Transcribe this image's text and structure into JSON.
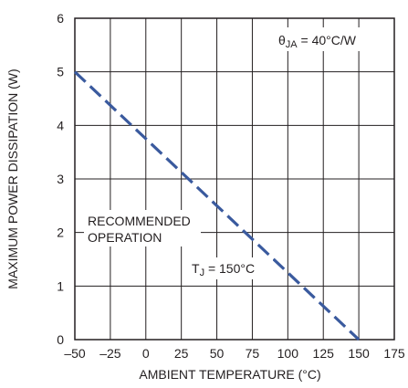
{
  "chart_data": {
    "type": "line",
    "title": "",
    "xlabel": "AMBIENT TEMPERATURE (°C)",
    "ylabel": "MAXIMUM POWER DISSIPATION (W)",
    "xlim": [
      -50,
      175
    ],
    "ylim": [
      0,
      6
    ],
    "x_ticks": [
      -50,
      -25,
      0,
      25,
      50,
      75,
      100,
      125,
      150,
      175
    ],
    "x_tick_labels": [
      "–50",
      "–25",
      "0",
      "25",
      "50",
      "75",
      "100",
      "125",
      "150",
      "175"
    ],
    "y_ticks": [
      0,
      1,
      2,
      3,
      4,
      5,
      6
    ],
    "y_tick_labels": [
      "0",
      "1",
      "2",
      "3",
      "4",
      "5",
      "6"
    ],
    "grid": true,
    "series": [
      {
        "line_style": "dashed",
        "color": "#3a5a9e",
        "x": [
          -50,
          150
        ],
        "y": [
          5,
          0
        ]
      }
    ],
    "annotations": {
      "theta": {
        "main": "θ",
        "sub": "JA",
        "rest": " = 40°C/W"
      },
      "recommended": [
        "RECOMMENDED",
        "OPERATION"
      ],
      "tj": {
        "main": "T",
        "sub": "J",
        "rest": " = 150°C"
      }
    }
  }
}
